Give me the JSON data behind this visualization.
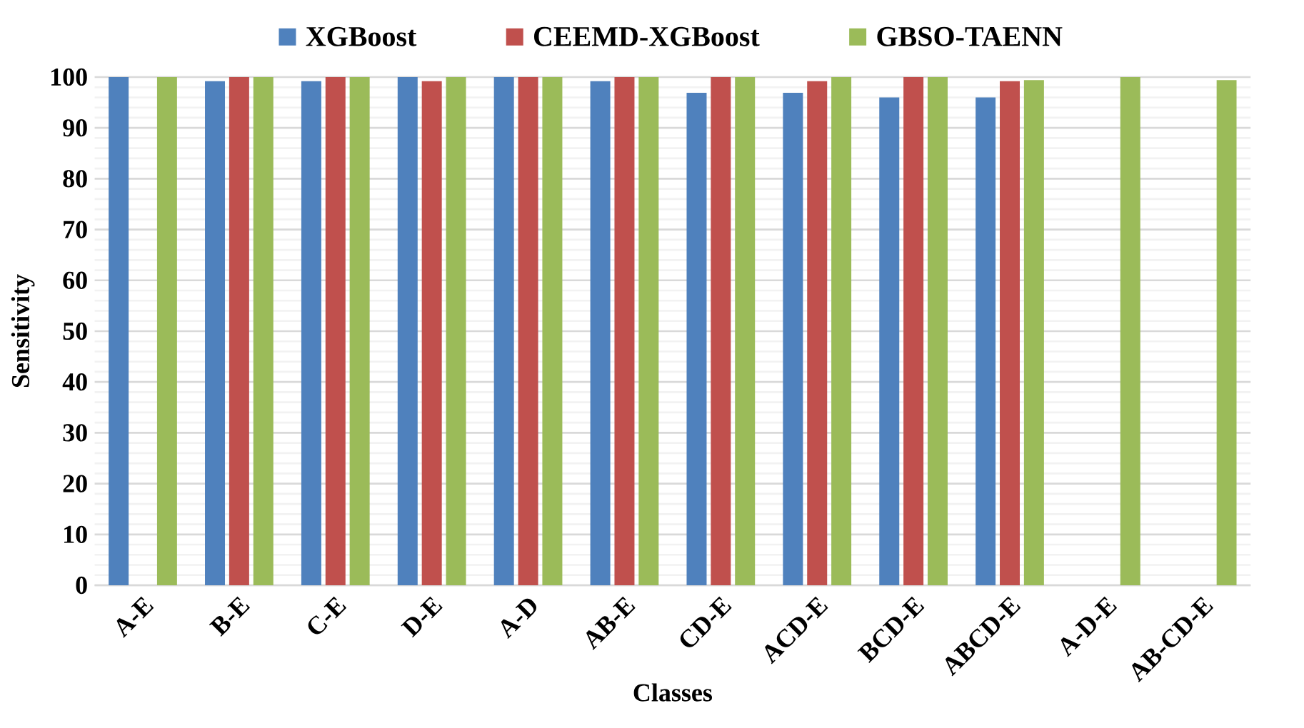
{
  "chart_data": {
    "type": "bar",
    "xlabel": "Classes",
    "ylabel": "Sensitivity",
    "categories": [
      "A-E",
      "B-E",
      "C-E",
      "D-E",
      "A-D",
      "AB-E",
      "CD-E",
      "ACD-E",
      "BCD-E",
      "ABCD-E",
      "A-D-E",
      "AB-CD-E"
    ],
    "series": [
      {
        "name": "XGBoost",
        "color": "#4f81bd",
        "values": [
          100,
          99.2,
          99.2,
          100,
          100,
          99.2,
          96.9,
          96.9,
          96,
          96,
          null,
          null
        ]
      },
      {
        "name": "CEEMD-XGBoost",
        "color": "#c0504d",
        "values": [
          null,
          100,
          100,
          99.2,
          100,
          100,
          100,
          99.2,
          100,
          99.2,
          null,
          null
        ]
      },
      {
        "name": "GBSO-TAENN",
        "color": "#9bbb59",
        "values": [
          100,
          100,
          100,
          100,
          100,
          100,
          100,
          100,
          100,
          99.4,
          100,
          99.4
        ]
      }
    ],
    "ylim": [
      0,
      100
    ],
    "yticks": [
      0,
      10,
      20,
      30,
      40,
      50,
      60,
      70,
      80,
      90,
      100
    ],
    "grid": "y",
    "legend": "top"
  }
}
